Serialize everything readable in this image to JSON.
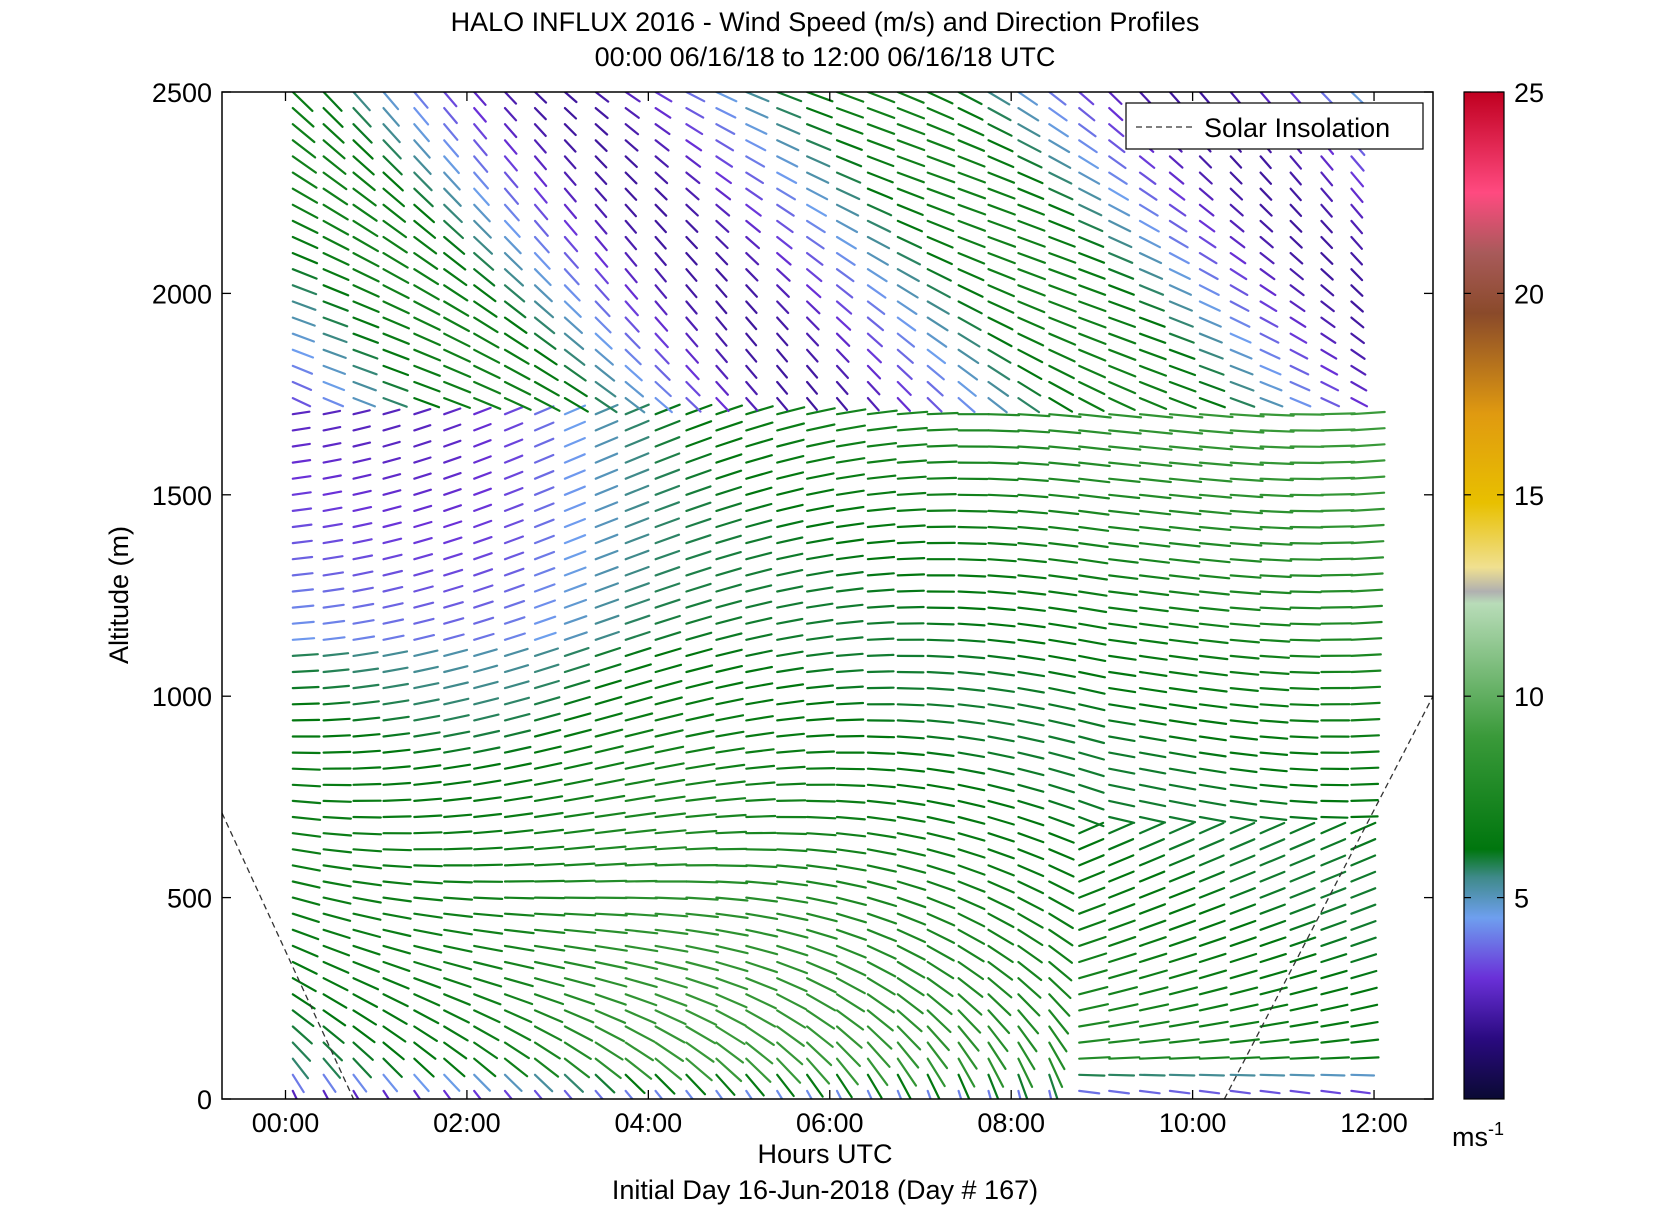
{
  "chart_data": {
    "type": "quiver",
    "title": "HALO INFLUX 2016 - Wind Speed (m/s) and Direction Profiles",
    "subtitle": "00:00 06/16/18 to 12:00 06/16/18  UTC",
    "xlabel": "Hours UTC",
    "x_note": "Initial Day 16-Jun-2018 (Day # 167)",
    "ylabel": "Altitude (m)",
    "xlim_hours": [
      -0.7,
      12.65
    ],
    "ylim": [
      0,
      2500
    ],
    "x_ticks": [
      {
        "value": 0,
        "label": "00:00"
      },
      {
        "value": 2,
        "label": "02:00"
      },
      {
        "value": 4,
        "label": "04:00"
      },
      {
        "value": 6,
        "label": "06:00"
      },
      {
        "value": 8,
        "label": "08:00"
      },
      {
        "value": 10,
        "label": "10:00"
      },
      {
        "value": 12,
        "label": "12:00"
      }
    ],
    "y_ticks": [
      {
        "value": 0,
        "label": "0"
      },
      {
        "value": 500,
        "label": "500"
      },
      {
        "value": 1000,
        "label": "1000"
      },
      {
        "value": 1500,
        "label": "1500"
      },
      {
        "value": 2000,
        "label": "2000"
      },
      {
        "value": 2500,
        "label": "2500"
      }
    ],
    "legend": {
      "label": "Solar Insolation",
      "placement": "top-right",
      "style": "dashed"
    },
    "colorbar": {
      "range": [
        0,
        25
      ],
      "ticks": [
        {
          "value": 5,
          "label": "5"
        },
        {
          "value": 10,
          "label": "10"
        },
        {
          "value": 15,
          "label": "15"
        },
        {
          "value": 20,
          "label": "20"
        },
        {
          "value": 25,
          "label": "25"
        }
      ],
      "unit": "ms",
      "unit_exponent": "-1",
      "stops": [
        {
          "v": 0,
          "color": "#0a0a33"
        },
        {
          "v": 1.5,
          "color": "#2a0a80"
        },
        {
          "v": 3,
          "color": "#6a30d8"
        },
        {
          "v": 4.5,
          "color": "#6e9fef"
        },
        {
          "v": 5.5,
          "color": "#3f8a8a"
        },
        {
          "v": 6.2,
          "color": "#00760e"
        },
        {
          "v": 9,
          "color": "#3a9a3a"
        },
        {
          "v": 12.3,
          "color": "#b8dcb8"
        },
        {
          "v": 12.6,
          "color": "#b0b0b0"
        },
        {
          "v": 13.2,
          "color": "#f0e090"
        },
        {
          "v": 14.8,
          "color": "#e8c000"
        },
        {
          "v": 17,
          "color": "#e09a10"
        },
        {
          "v": 19.5,
          "color": "#8a4a2a"
        },
        {
          "v": 21,
          "color": "#a85a5a"
        },
        {
          "v": 22.5,
          "color": "#ff4a80"
        },
        {
          "v": 25,
          "color": "#c00020"
        }
      ]
    },
    "wind_profile_times_hours": [
      0.08,
      0.42,
      0.75,
      1.08,
      1.42,
      1.75,
      2.08,
      2.42,
      2.75,
      3.08,
      3.42,
      3.75,
      4.08,
      4.42,
      4.75,
      5.08,
      5.42,
      5.75,
      6.08,
      6.42,
      6.75,
      7.08,
      7.42,
      7.75,
      8.08,
      8.42,
      8.75,
      9.08,
      9.42,
      9.75,
      10.08,
      10.42,
      10.75,
      11.08,
      11.42,
      11.75
    ],
    "wind_altitude_step_m": 40,
    "wind_altitude_max_m": 2500,
    "wind_field_summary": [
      {
        "region": "00:00-03:00, 1000-1700 m",
        "speed_ms": "2-5",
        "direction": "roughly westerly, veering"
      },
      {
        "region": "03:00-12:00, 0-1700 m",
        "speed_ms": "6-10",
        "direction": "southerly near surface veering to westerly aloft"
      },
      {
        "region": "00:00-12:00, 1700-2500 m",
        "speed_ms": "3-7",
        "direction": "northwesterly"
      }
    ],
    "solar_insolation_curve": [
      {
        "x": -0.7,
        "y": 710
      },
      {
        "x": 0.75,
        "y": 0
      },
      {
        "x": 10.35,
        "y": 0
      },
      {
        "x": 12.65,
        "y": 1000
      }
    ]
  }
}
